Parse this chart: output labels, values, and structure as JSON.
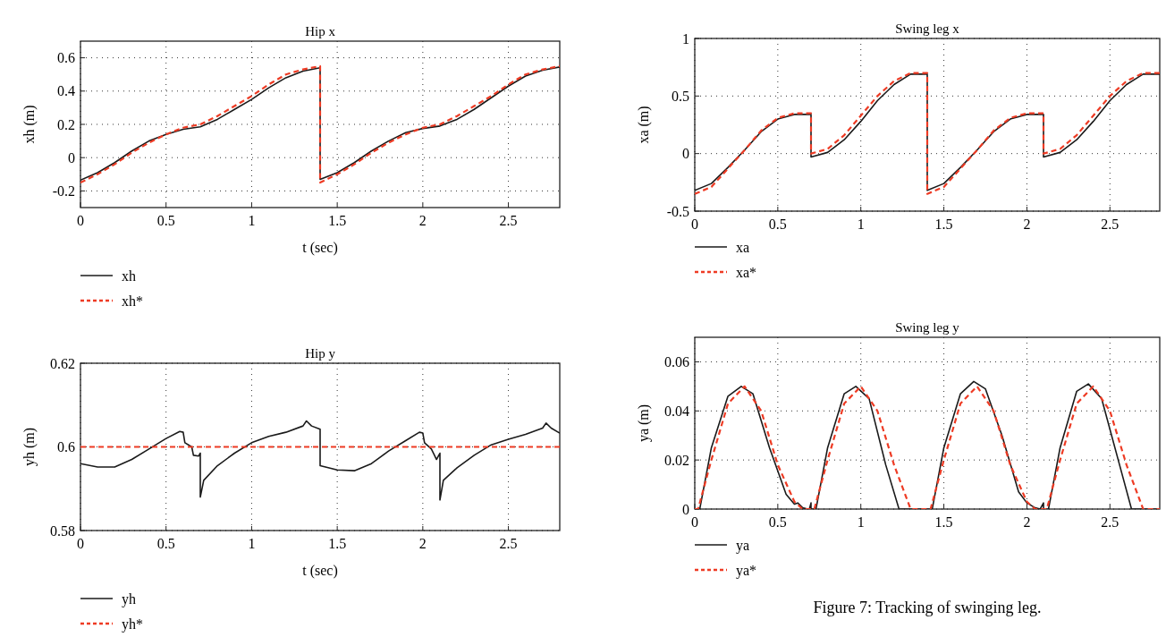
{
  "chart_data": [
    {
      "type": "line",
      "title": "Hip x",
      "xlabel": "t (sec)",
      "ylabel": "xh (m)",
      "xlim": [
        0,
        2.8
      ],
      "xticks": [
        0,
        0.5,
        1,
        1.5,
        2,
        2.5
      ],
      "ylim": [
        -0.3,
        0.7
      ],
      "yticks": [
        -0.2,
        0,
        0.2,
        0.4,
        0.6
      ],
      "grid": true,
      "legend": "bottom",
      "series": [
        {
          "name": "xh",
          "color": "#1a1a1a",
          "line_style": "solid",
          "x": [
            0,
            0.1,
            0.2,
            0.3,
            0.4,
            0.5,
            0.6,
            0.7,
            0.8,
            0.9,
            1.0,
            1.1,
            1.2,
            1.3,
            1.4,
            1.4,
            1.5,
            1.6,
            1.7,
            1.8,
            1.9,
            2.0,
            2.1,
            2.2,
            2.3,
            2.4,
            2.5,
            2.6,
            2.7,
            2.8
          ],
          "values": [
            -0.135,
            -0.09,
            -0.03,
            0.04,
            0.1,
            0.14,
            0.17,
            0.185,
            0.23,
            0.29,
            0.35,
            0.42,
            0.48,
            0.52,
            0.54,
            -0.13,
            -0.09,
            -0.03,
            0.04,
            0.1,
            0.15,
            0.175,
            0.19,
            0.23,
            0.29,
            0.36,
            0.43,
            0.49,
            0.525,
            0.545
          ]
        },
        {
          "name": "xh*",
          "color": "#ee3b24",
          "line_style": "dashed",
          "x": [
            0,
            0.1,
            0.2,
            0.3,
            0.4,
            0.5,
            0.6,
            0.7,
            0.8,
            0.9,
            1.0,
            1.1,
            1.2,
            1.3,
            1.4,
            1.4,
            1.5,
            1.6,
            1.7,
            1.8,
            1.9,
            2.0,
            2.1,
            2.2,
            2.3,
            2.4,
            2.5,
            2.6,
            2.7,
            2.8
          ],
          "values": [
            -0.15,
            -0.1,
            -0.04,
            0.03,
            0.09,
            0.14,
            0.18,
            0.2,
            0.25,
            0.31,
            0.37,
            0.44,
            0.5,
            0.53,
            0.55,
            -0.15,
            -0.1,
            -0.04,
            0.03,
            0.09,
            0.14,
            0.18,
            0.2,
            0.25,
            0.31,
            0.37,
            0.44,
            0.5,
            0.53,
            0.55
          ]
        }
      ]
    },
    {
      "type": "line",
      "title": "Swing leg x",
      "ylabel": "xa (m)",
      "xlim": [
        0,
        2.8
      ],
      "xticks": [
        0,
        0.5,
        1,
        1.5,
        2,
        2.5
      ],
      "ylim": [
        -0.5,
        1
      ],
      "yticks": [
        -0.5,
        0,
        0.5,
        1
      ],
      "grid": true,
      "legend": "bottom",
      "series": [
        {
          "name": "xa",
          "color": "#1a1a1a",
          "line_style": "solid",
          "x": [
            0,
            0.1,
            0.2,
            0.3,
            0.4,
            0.5,
            0.6,
            0.7,
            0.7,
            0.8,
            0.9,
            1.0,
            1.1,
            1.2,
            1.3,
            1.4,
            1.4,
            1.5,
            1.6,
            1.7,
            1.8,
            1.9,
            2.0,
            2.1,
            2.1,
            2.2,
            2.3,
            2.4,
            2.5,
            2.6,
            2.7,
            2.8
          ],
          "values": [
            -0.32,
            -0.26,
            -0.12,
            0.03,
            0.19,
            0.3,
            0.34,
            0.34,
            -0.03,
            0.01,
            0.12,
            0.28,
            0.46,
            0.6,
            0.69,
            0.69,
            -0.32,
            -0.26,
            -0.12,
            0.03,
            0.19,
            0.3,
            0.34,
            0.34,
            -0.03,
            0.01,
            0.12,
            0.28,
            0.46,
            0.6,
            0.69,
            0.69
          ]
        },
        {
          "name": "xa*",
          "color": "#ee3b24",
          "line_style": "dashed",
          "x": [
            0,
            0.1,
            0.2,
            0.3,
            0.4,
            0.5,
            0.6,
            0.7,
            0.7,
            0.8,
            0.9,
            1.0,
            1.1,
            1.2,
            1.3,
            1.4,
            1.4,
            1.5,
            1.6,
            1.7,
            1.8,
            1.9,
            2.0,
            2.1,
            2.1,
            2.2,
            2.3,
            2.4,
            2.5,
            2.6,
            2.7,
            2.8
          ],
          "values": [
            -0.35,
            -0.29,
            -0.13,
            0.03,
            0.2,
            0.31,
            0.35,
            0.35,
            0,
            0.04,
            0.16,
            0.33,
            0.5,
            0.63,
            0.7,
            0.7,
            -0.35,
            -0.29,
            -0.13,
            0.03,
            0.2,
            0.31,
            0.35,
            0.35,
            0,
            0.04,
            0.16,
            0.33,
            0.5,
            0.63,
            0.7,
            0.7
          ]
        }
      ]
    },
    {
      "type": "line",
      "title": "Hip y",
      "xlabel": "t (sec)",
      "ylabel": "yh (m)",
      "xlim": [
        0,
        2.8
      ],
      "xticks": [
        0,
        0.5,
        1,
        1.5,
        2,
        2.5
      ],
      "ylim": [
        0.58,
        0.62
      ],
      "yticks": [
        0.58,
        0.6,
        0.62
      ],
      "grid": true,
      "legend": "bottom",
      "series": [
        {
          "name": "yh",
          "color": "#1a1a1a",
          "line_style": "solid",
          "x": [
            0,
            0.1,
            0.2,
            0.3,
            0.4,
            0.5,
            0.58,
            0.6,
            0.61,
            0.65,
            0.66,
            0.69,
            0.7,
            0.7,
            0.72,
            0.8,
            0.9,
            1.0,
            1.1,
            1.2,
            1.3,
            1.32,
            1.35,
            1.4,
            1.4,
            1.5,
            1.6,
            1.7,
            1.8,
            1.9,
            1.98,
            2.0,
            2.01,
            2.05,
            2.08,
            2.1,
            2.1,
            2.12,
            2.2,
            2.3,
            2.4,
            2.5,
            2.6,
            2.7,
            2.72,
            2.75,
            2.8
          ],
          "values": [
            0.596,
            0.5952,
            0.5952,
            0.597,
            0.5995,
            0.602,
            0.6037,
            0.6035,
            0.601,
            0.6,
            0.598,
            0.5978,
            0.5985,
            0.588,
            0.592,
            0.5955,
            0.5985,
            0.601,
            0.6025,
            0.6035,
            0.605,
            0.6062,
            0.605,
            0.6042,
            0.5955,
            0.5945,
            0.5943,
            0.596,
            0.599,
            0.6015,
            0.6035,
            0.6033,
            0.601,
            0.5995,
            0.597,
            0.5985,
            0.5873,
            0.592,
            0.595,
            0.598,
            0.6005,
            0.6018,
            0.603,
            0.6045,
            0.6057,
            0.6045,
            0.6033
          ]
        },
        {
          "name": "yh*",
          "color": "#ee3b24",
          "line_style": "dashed",
          "x": [
            0,
            2.8
          ],
          "values": [
            0.6,
            0.6
          ]
        }
      ]
    },
    {
      "type": "line",
      "title": "Swing leg y",
      "ylabel": "ya (m)",
      "xlim": [
        0,
        2.8
      ],
      "xticks": [
        0,
        0.5,
        1,
        1.5,
        2,
        2.5
      ],
      "ylim": [
        0,
        0.07
      ],
      "yticks": [
        0,
        0.02,
        0.04,
        0.06
      ],
      "grid": true,
      "legend": "bottom",
      "annotations": [
        "Figure 7: Tracking of swinging leg."
      ],
      "series": [
        {
          "name": "ya",
          "color": "#1a1a1a",
          "line_style": "solid",
          "x": [
            0,
            0.03,
            0.1,
            0.2,
            0.28,
            0.35,
            0.45,
            0.55,
            0.6,
            0.62,
            0.65,
            0.68,
            0.69,
            0.7,
            0.7,
            0.73,
            0.8,
            0.9,
            0.97,
            1.05,
            1.15,
            1.23,
            1.43,
            1.5,
            1.6,
            1.68,
            1.75,
            1.85,
            1.95,
            2.0,
            2.05,
            2.08,
            2.1,
            2.1,
            2.13,
            2.2,
            2.3,
            2.37,
            2.45,
            2.55,
            2.63,
            2.8
          ],
          "values": [
            0,
            0,
            0.025,
            0.046,
            0.05,
            0.047,
            0.025,
            0.006,
            0.002,
            0.0025,
            0.0005,
            0,
            0,
            0.0025,
            0,
            0,
            0.025,
            0.047,
            0.05,
            0.045,
            0.018,
            0,
            0,
            0.025,
            0.047,
            0.052,
            0.049,
            0.03,
            0.007,
            0.0025,
            0.0005,
            0,
            0.0025,
            0,
            0,
            0.025,
            0.048,
            0.051,
            0.045,
            0.02,
            0,
            0
          ]
        },
        {
          "name": "ya*",
          "color": "#ee3b24",
          "line_style": "dashed",
          "x": [
            0,
            0.02,
            0.1,
            0.2,
            0.3,
            0.4,
            0.5,
            0.6,
            0.65,
            0.72,
            0.8,
            0.9,
            1.0,
            1.1,
            1.2,
            1.3,
            1.42,
            1.5,
            1.6,
            1.7,
            1.8,
            1.9,
            2.0,
            2.05,
            2.12,
            2.2,
            2.3,
            2.4,
            2.5,
            2.6,
            2.7,
            2.8
          ],
          "values": [
            0,
            0,
            0.02,
            0.043,
            0.05,
            0.04,
            0.018,
            0.003,
            0,
            0,
            0.02,
            0.043,
            0.05,
            0.04,
            0.018,
            0,
            0,
            0.02,
            0.043,
            0.05,
            0.04,
            0.018,
            0.003,
            0,
            0,
            0.02,
            0.043,
            0.05,
            0.04,
            0.018,
            0,
            0
          ]
        }
      ]
    }
  ]
}
